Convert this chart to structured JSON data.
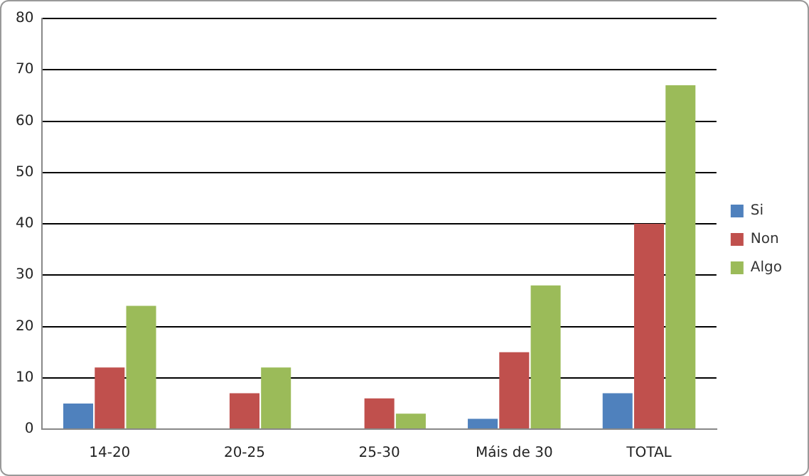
{
  "chart_data": {
    "type": "bar",
    "categories": [
      "14-20",
      "20-25",
      "25-30",
      "Máis de 30",
      "TOTAL"
    ],
    "series": [
      {
        "name": "Si",
        "color": "#4f81bd",
        "values": [
          5,
          0,
          0,
          2,
          7
        ]
      },
      {
        "name": "Non",
        "color": "#c0504d",
        "values": [
          12,
          7,
          6,
          15,
          40
        ]
      },
      {
        "name": "Algo",
        "color": "#9bbb59",
        "values": [
          24,
          12,
          3,
          28,
          67
        ]
      }
    ],
    "ylim": [
      0,
      80
    ],
    "yticks": [
      0,
      10,
      20,
      30,
      40,
      50,
      60,
      70,
      80
    ],
    "grid": "y",
    "legend": "right"
  }
}
